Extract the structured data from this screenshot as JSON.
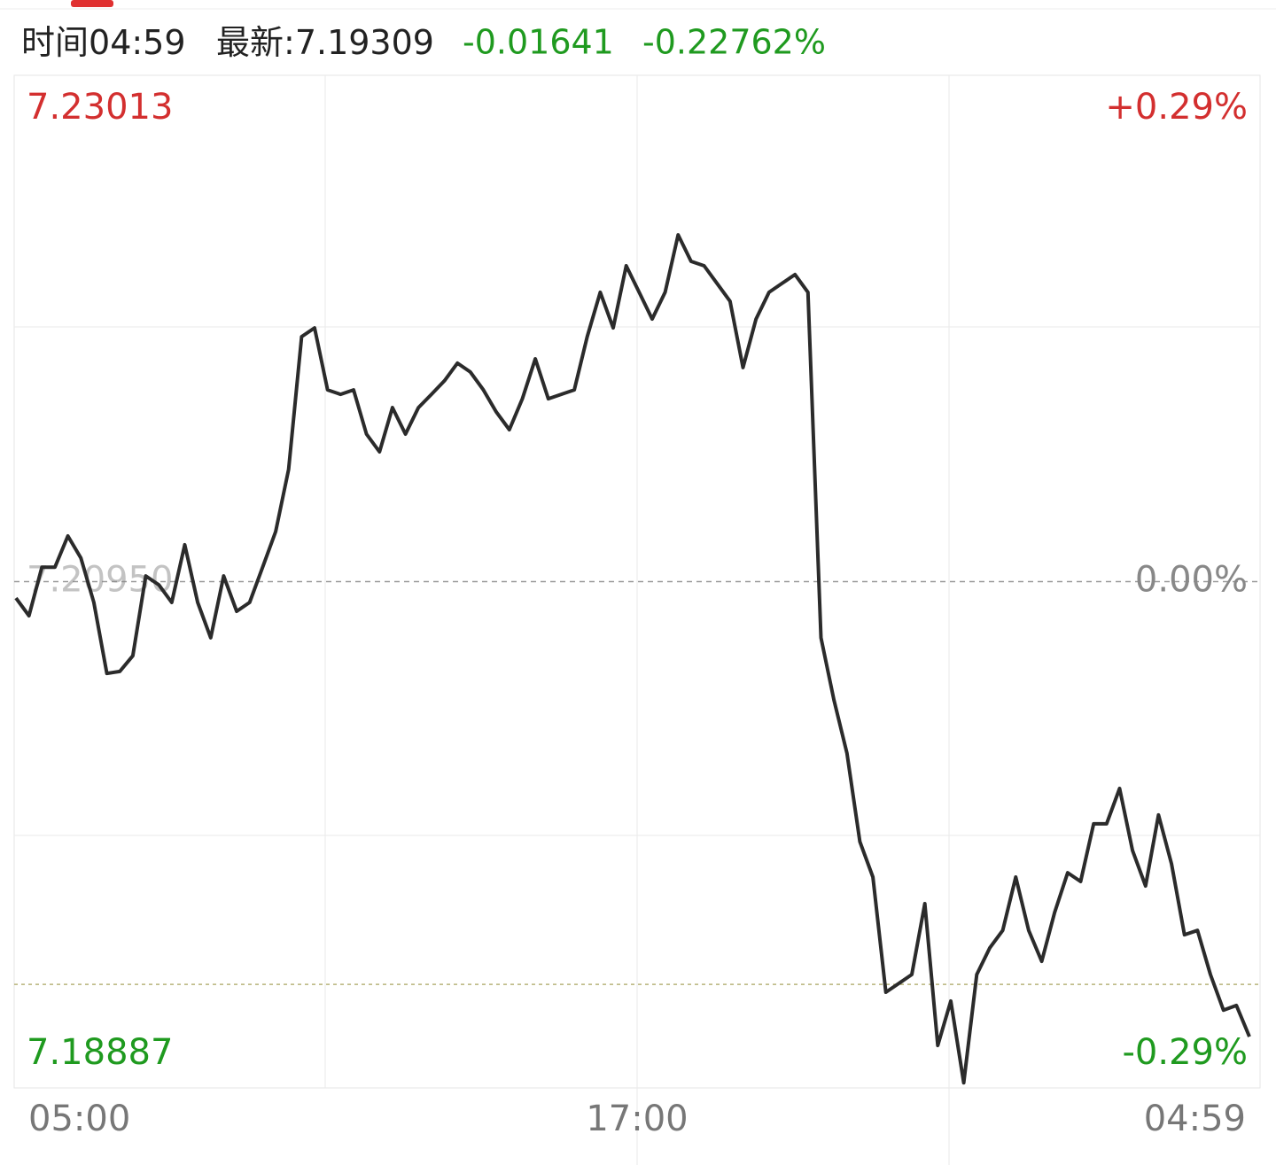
{
  "header": {
    "time_label": "时间",
    "time": "04:59",
    "latest_label": "最新:",
    "change": "-0.01641",
    "change_pct": "-0.22762%"
  },
  "chart_data": {
    "type": "line",
    "last_value": 7.19309,
    "xtick_labels": [
      "05:00",
      "17:00",
      "04:59"
    ],
    "ylim": [
      7.18887,
      7.23013
    ],
    "yticks": [
      7.23013,
      {
        "value": 7.2095,
        "label": "7.20950"
      },
      7.18887
    ],
    "y2lim": [
      -0.29,
      0.29
    ],
    "y2ticks": [
      {
        "value": 0.29,
        "label": "+0.29%"
      },
      {
        "value": 0,
        "label": "0.00%"
      },
      {
        "value": -0.29,
        "label": "-0.29%"
      }
    ],
    "color": "#2b2b2b",
    "values": [
      7.20883,
      7.20811,
      7.21009,
      7.21009,
      7.21136,
      7.21046,
      7.20865,
      7.20576,
      7.20584,
      7.20648,
      7.20973,
      7.20937,
      7.20865,
      7.211,
      7.20865,
      7.20721,
      7.20973,
      7.20829,
      7.20865,
      7.21009,
      7.21154,
      7.21407,
      7.21948,
      7.21984,
      7.21731,
      7.21713,
      7.21731,
      7.21551,
      7.21479,
      7.21659,
      7.21551,
      7.21659,
      7.21713,
      7.21768,
      7.2184,
      7.21804,
      7.21731,
      7.21641,
      7.21569,
      7.21695,
      7.21858,
      7.21695,
      7.21713,
      7.21731,
      7.21948,
      7.22129,
      7.21984,
      7.22237,
      7.22129,
      7.2202,
      7.22129,
      7.22363,
      7.22255,
      7.22237,
      7.22165,
      7.22092,
      7.21822,
      7.2202,
      7.22129,
      7.22165,
      7.22201,
      7.22129,
      7.20721,
      7.20468,
      7.20251,
      7.1989,
      7.19746,
      7.19277,
      7.19313,
      7.19349,
      7.19638,
      7.1906,
      7.19241,
      7.18908,
      7.19349,
      7.19457,
      7.19529,
      7.19746,
      7.19529,
      7.19403,
      7.19602,
      7.19764,
      7.19728,
      7.19963,
      7.19963,
      7.20107,
      7.19854,
      7.1971,
      7.19999,
      7.198,
      7.19511,
      7.19529,
      7.19349,
      7.19204,
      7.19223,
      7.19096
    ]
  }
}
